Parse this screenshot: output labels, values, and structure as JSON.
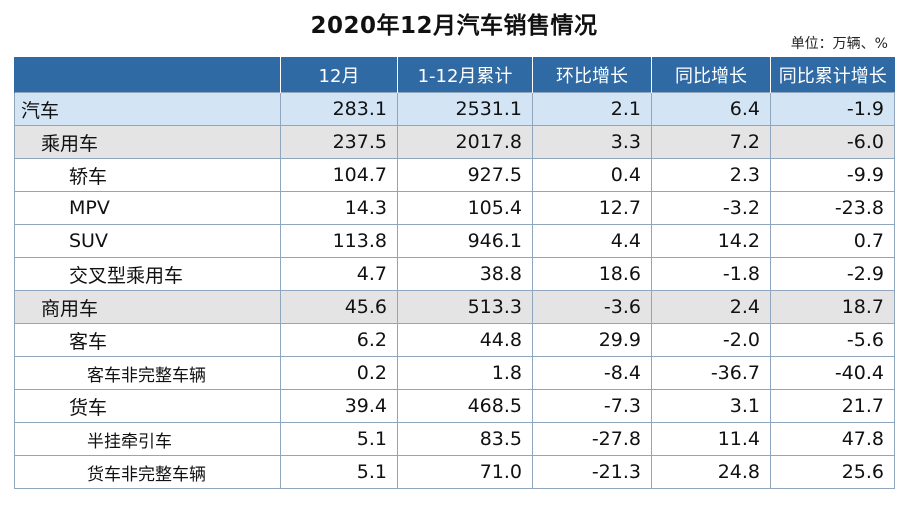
{
  "title": "2020年12月汽车销售情况",
  "unit_note": "单位：万辆、%",
  "chart_data": {
    "type": "table",
    "title": "2020年12月汽车销售情况",
    "unit": "单位：万辆、%",
    "columns": [
      "",
      "12月",
      "1-12月累计",
      "环比增长",
      "同比增长",
      "同比累计增长"
    ],
    "rows": [
      {
        "name": "汽车",
        "level": 0,
        "values": [
          "283.1",
          "2531.1",
          "2.1",
          "6.4",
          "-1.9"
        ]
      },
      {
        "name": "乘用车",
        "level": 1,
        "values": [
          "237.5",
          "2017.8",
          "3.3",
          "7.2",
          "-6.0"
        ]
      },
      {
        "name": "轿车",
        "level": 2,
        "values": [
          "104.7",
          "927.5",
          "0.4",
          "2.3",
          "-9.9"
        ]
      },
      {
        "name": "MPV",
        "level": 2,
        "values": [
          "14.3",
          "105.4",
          "12.7",
          "-3.2",
          "-23.8"
        ]
      },
      {
        "name": "SUV",
        "level": 2,
        "values": [
          "113.8",
          "946.1",
          "4.4",
          "14.2",
          "0.7"
        ]
      },
      {
        "name": "交叉型乘用车",
        "level": 2,
        "values": [
          "4.7",
          "38.8",
          "18.6",
          "-1.8",
          "-2.9"
        ]
      },
      {
        "name": "商用车",
        "level": 1,
        "values": [
          "45.6",
          "513.3",
          "-3.6",
          "2.4",
          "18.7"
        ]
      },
      {
        "name": "客车",
        "level": 2,
        "values": [
          "6.2",
          "44.8",
          "29.9",
          "-2.0",
          "-5.6"
        ]
      },
      {
        "name": "客车非完整车辆",
        "level": 3,
        "values": [
          "0.2",
          "1.8",
          "-8.4",
          "-36.7",
          "-40.4"
        ]
      },
      {
        "name": "货车",
        "level": 2,
        "values": [
          "39.4",
          "468.5",
          "-7.3",
          "3.1",
          "21.7"
        ]
      },
      {
        "name": "半挂牵引车",
        "level": 3,
        "values": [
          "5.1",
          "83.5",
          "-27.8",
          "11.4",
          "47.8"
        ]
      },
      {
        "name": "货车非完整车辆",
        "level": 3,
        "values": [
          "5.1",
          "71.0",
          "-21.3",
          "24.8",
          "25.6"
        ]
      }
    ]
  },
  "colors": {
    "header_bg": "#2f6aa5",
    "level0_bg": "#d3e5f5",
    "level1_bg": "#e4e4e4"
  }
}
